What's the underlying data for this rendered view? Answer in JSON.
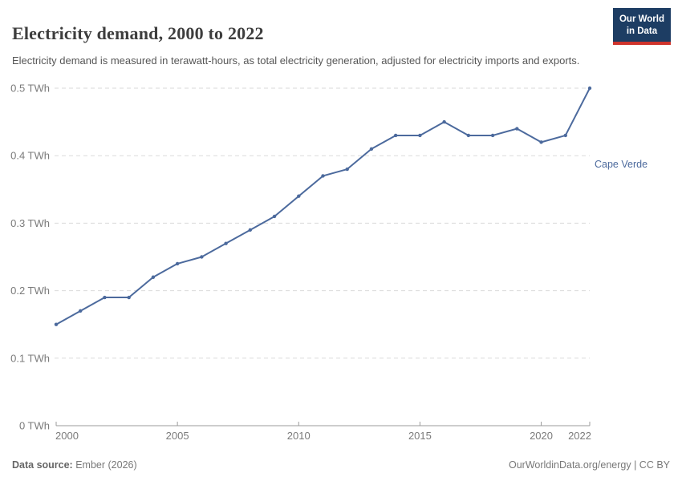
{
  "header": {
    "title": "Electricity demand, 2000 to 2022",
    "subtitle": "Electricity demand is measured in terawatt-hours, as total electricity generation, adjusted for electricity imports and exports.",
    "logo": {
      "line1": "Our World",
      "line2": "in Data"
    }
  },
  "chart_data": {
    "type": "line",
    "title": "Electricity demand, 2000 to 2022",
    "unit": "TWh",
    "grid": true,
    "legend_position": "end-of-line-label",
    "x": [
      2000,
      2001,
      2002,
      2003,
      2004,
      2005,
      2006,
      2007,
      2008,
      2009,
      2010,
      2011,
      2012,
      2013,
      2014,
      2015,
      2016,
      2017,
      2018,
      2019,
      2020,
      2021,
      2022
    ],
    "series": [
      {
        "name": "Cape Verde",
        "color": "#4C6A9D",
        "values": [
          0.15,
          0.17,
          0.19,
          0.19,
          0.22,
          0.24,
          0.25,
          0.27,
          0.29,
          0.31,
          0.34,
          0.37,
          0.38,
          0.41,
          0.43,
          0.43,
          0.45,
          0.43,
          0.43,
          0.44,
          0.42,
          0.43,
          0.5
        ]
      }
    ],
    "ylim": [
      0,
      0.5
    ],
    "yticks": [
      {
        "value": 0,
        "label": "0 TWh"
      },
      {
        "value": 0.1,
        "label": "0.1 TWh"
      },
      {
        "value": 0.2,
        "label": "0.2 TWh"
      },
      {
        "value": 0.3,
        "label": "0.3 TWh"
      },
      {
        "value": 0.4,
        "label": "0.4 TWh"
      },
      {
        "value": 0.5,
        "label": "0.5 TWh"
      }
    ],
    "xticks": [
      {
        "value": 2000,
        "label": "2000"
      },
      {
        "value": 2005,
        "label": "2005"
      },
      {
        "value": 2010,
        "label": "2010"
      },
      {
        "value": 2015,
        "label": "2015"
      },
      {
        "value": 2020,
        "label": "2020"
      },
      {
        "value": 2022,
        "label": "2022"
      }
    ]
  },
  "footer": {
    "datasource_label": "Data source:",
    "datasource_value": "Ember (2026)",
    "right_text": "OurWorldinData.org/energy | CC BY"
  },
  "colors": {
    "line": "#4C6A9D",
    "gridline": "#dadada",
    "axis": "#9b9b9b",
    "tick_text": "#7b7b7b",
    "logo_bg": "#1d3d63",
    "logo_accent": "#cf342c"
  }
}
